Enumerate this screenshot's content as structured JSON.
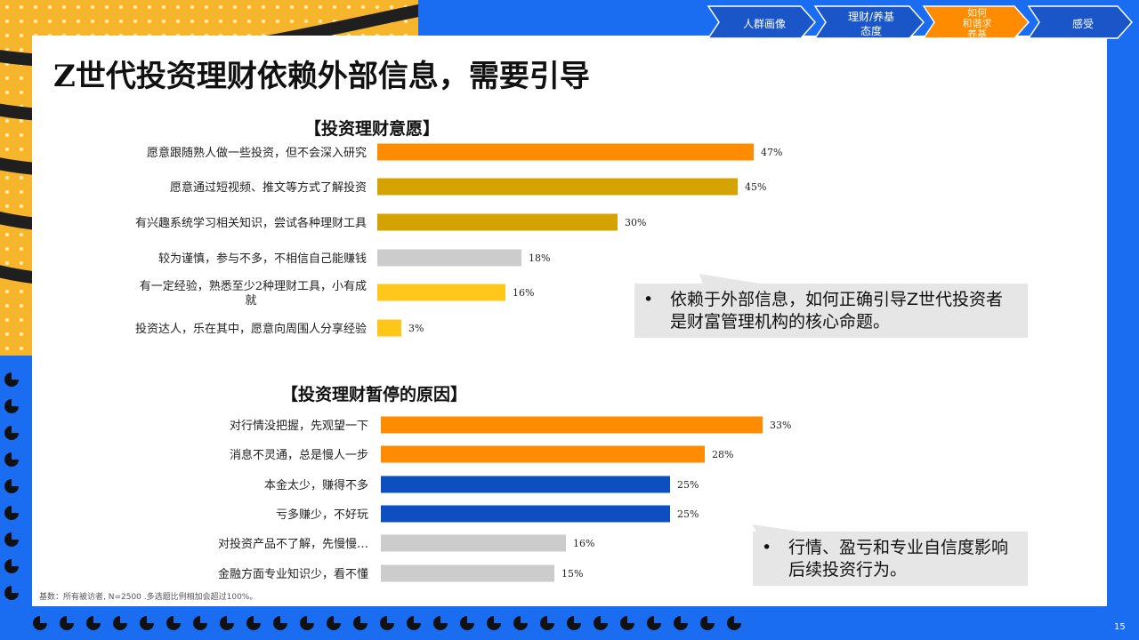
{
  "title": "Z世代投资理财依赖外部信息，需要引导",
  "nav": [
    {
      "label": "人群画像",
      "active": false
    },
    {
      "label": "理财/养基\n态度",
      "active": false
    },
    {
      "label": "如何\n和谐求\n养基",
      "active": true
    },
    {
      "label": "感受",
      "active": false
    }
  ],
  "colors": {
    "orange": "#ff8c00",
    "gold": "#d4a300",
    "yellow": "#ffc719",
    "gray": "#cccccc",
    "blue": "#0d4fc0",
    "background_blue": "#1a6cf0"
  },
  "chart_data": [
    {
      "type": "bar",
      "orientation": "horizontal",
      "title": "【投资理财意愿】",
      "categories": [
        "愿意跟随熟人做一些投资，但不会深入研究",
        "愿意通过短视频、推文等方式了解投资",
        "有兴趣系统学习相关知识，尝试各种理财工具",
        "较为谨慎，参与不多，不相信自己能赚钱",
        "有一定经验，熟悉至少2种理财工具，小有成就",
        "投资达人，乐在其中，愿意向周围人分享经验"
      ],
      "values": [
        47,
        45,
        30,
        18,
        16,
        3
      ],
      "data_labels": [
        "47%",
        "45%",
        "30%",
        "18%",
        "16%",
        "3%"
      ],
      "bar_colors": [
        "#ff8c00",
        "#d4a300",
        "#d4a300",
        "#cccccc",
        "#ffc719",
        "#ffc719"
      ],
      "unit": "%"
    },
    {
      "type": "bar",
      "orientation": "horizontal",
      "title": "【投资理财暂停的原因】",
      "categories": [
        "对行情没把握，先观望一下",
        "消息不灵通，总是慢人一步",
        "本金太少，赚得不多",
        "亏多赚少，不好玩",
        "对投资产品不了解，先慢慢…",
        "金融方面专业知识少，看不懂"
      ],
      "values": [
        33,
        28,
        25,
        25,
        16,
        15
      ],
      "data_labels": [
        "33%",
        "28%",
        "25%",
        "25%",
        "16%",
        "15%"
      ],
      "bar_colors": [
        "#ff8c00",
        "#ff8c00",
        "#0d4fc0",
        "#0d4fc0",
        "#cccccc",
        "#cccccc"
      ],
      "unit": "%"
    }
  ],
  "callouts": [
    {
      "bullet": "•",
      "text": "依赖于外部信息，如何正确引导Z世代投资者是财富管理机构的核心命题。"
    },
    {
      "bullet": "•",
      "text": "行情、盈亏和专业自信度影响后续投资行为。"
    }
  ],
  "footnote": "基数：所有被访者, N=2500 .多选题比例相加会超过100%。",
  "page_number": "15"
}
